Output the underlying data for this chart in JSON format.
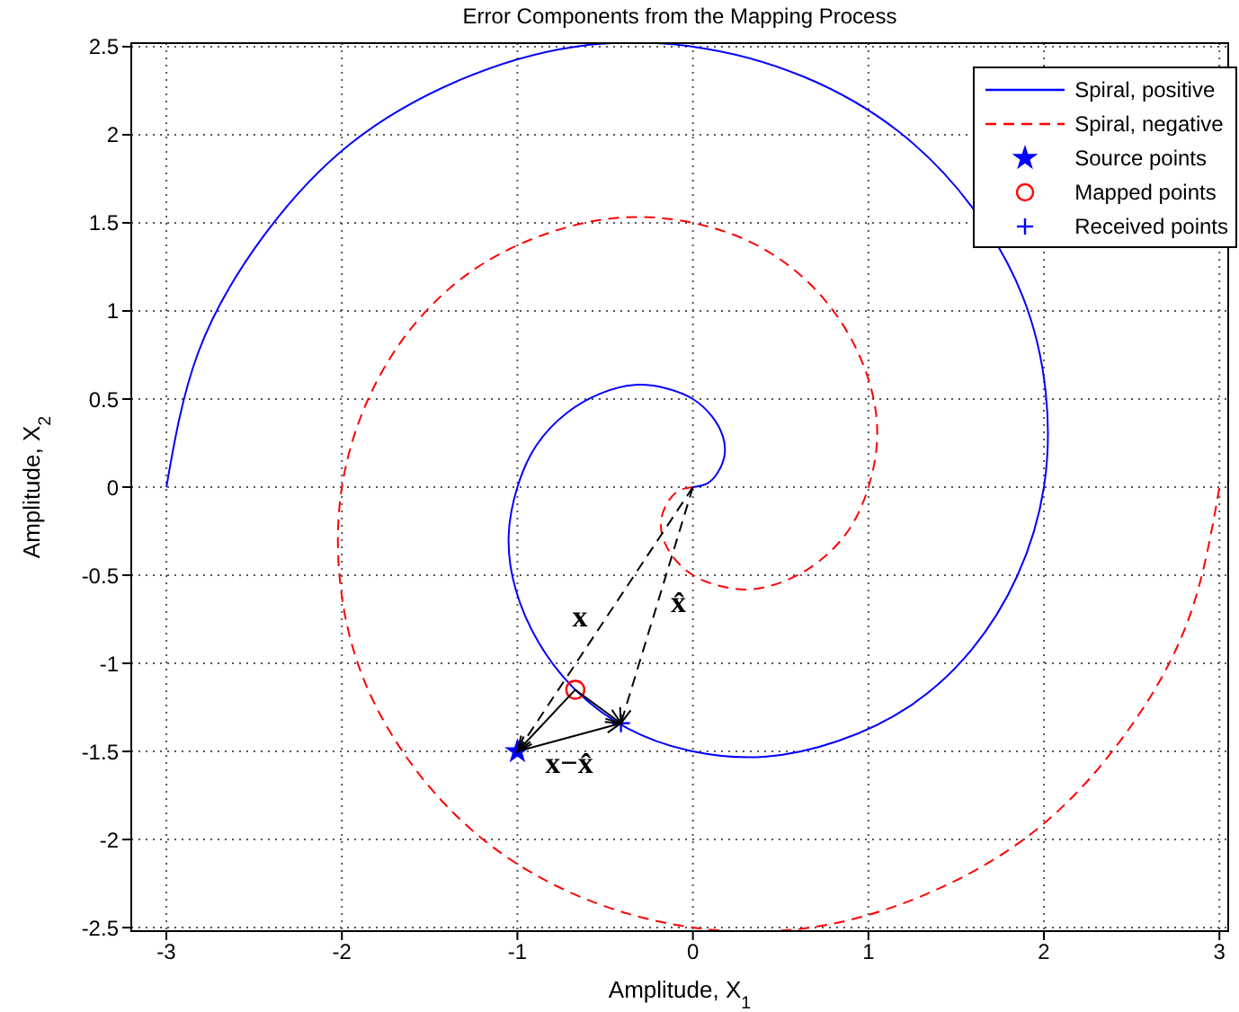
{
  "chart_data": {
    "type": "line",
    "title": "Error Components from the Mapping Process",
    "xlabel": "Amplitude, X$_{1}$",
    "ylabel": "Amplitude, X$_{2}$",
    "xlim": [
      -3.2,
      3.05
    ],
    "ylim": [
      -2.52,
      2.52
    ],
    "xticks": [
      -3,
      -2,
      -1,
      0,
      1,
      2,
      3
    ],
    "yticks": [
      -2.5,
      -2,
      -1.5,
      -1,
      -0.5,
      0,
      0.5,
      1,
      1.5,
      2,
      2.5
    ],
    "grid": true,
    "legend": "top right",
    "annotations": [
      "x",
      "x̂",
      {
        "text": "x−x̂",
        "x": -0.41,
        "y": -1.34
      }
    ],
    "series": [
      {
        "name": "Spiral, positive",
        "color": "#0000ff",
        "line_style": "solid",
        "marker": "none",
        "x": [
          0,
          0.08,
          0.14,
          0.18,
          0.17,
          0.11,
          0,
          -0.15,
          -0.33,
          -0.53,
          -0.72,
          -0.89,
          -1,
          -1.05,
          -1.01,
          -0.88,
          -0.67,
          -0.37,
          0,
          0.41,
          0.83,
          1.24,
          1.59,
          1.85,
          2,
          2.01,
          1.88,
          1.59,
          1.17,
          0.63,
          0,
          -0.67,
          -1.33,
          -1.95,
          -2.45,
          -2.82,
          -3
        ],
        "values": [
          0,
          0.02,
          0.08,
          0.18,
          0.29,
          0.4,
          0.5,
          0.56,
          0.58,
          0.53,
          0.42,
          0.24,
          0,
          -0.28,
          -0.58,
          -0.88,
          -1.15,
          -1.37,
          -1.5,
          -1.53,
          -1.44,
          -1.24,
          -0.92,
          -0.5,
          0,
          0.54,
          1.08,
          1.59,
          2.02,
          2.33,
          2.5,
          2.5,
          2.31,
          1.95,
          1.42,
          0.76,
          0
        ]
      },
      {
        "name": "Spiral, negative",
        "color": "#ff0000",
        "line_style": "dashed",
        "marker": "none",
        "x": [
          0,
          -0.08,
          -0.14,
          -0.18,
          -0.17,
          -0.11,
          0,
          0.15,
          0.33,
          0.53,
          0.72,
          0.89,
          1,
          1.05,
          1.01,
          0.88,
          0.67,
          0.37,
          0,
          -0.41,
          -0.83,
          -1.24,
          -1.59,
          -1.85,
          -2,
          -2.01,
          -1.88,
          -1.59,
          -1.17,
          -0.63,
          0,
          0.67,
          1.33,
          1.95,
          2.45,
          2.82,
          3
        ],
        "values": [
          0,
          -0.02,
          -0.08,
          -0.18,
          -0.29,
          -0.4,
          -0.5,
          -0.56,
          -0.58,
          -0.53,
          -0.42,
          -0.24,
          0,
          0.28,
          0.58,
          0.88,
          1.15,
          1.37,
          1.5,
          1.53,
          1.44,
          1.24,
          0.92,
          0.5,
          0,
          -0.54,
          -1.08,
          -1.59,
          -2.02,
          -2.33,
          -2.5,
          -2.5,
          -2.31,
          -1.95,
          -1.42,
          -0.76,
          0
        ]
      },
      {
        "name": "Source points",
        "type": "scatter",
        "color": "#0000ff",
        "marker": "star",
        "x": [
          -1
        ],
        "values": [
          -1.5
        ]
      },
      {
        "name": "Mapped points",
        "type": "scatter",
        "color": "#ff0000",
        "marker": "circle",
        "x": [
          -0.67
        ],
        "values": [
          -1.15
        ]
      },
      {
        "name": "Received points",
        "type": "scatter",
        "color": "#0000ff",
        "marker": "cross",
        "x": [
          -0.41
        ],
        "values": [
          -1.34
        ]
      }
    ]
  }
}
